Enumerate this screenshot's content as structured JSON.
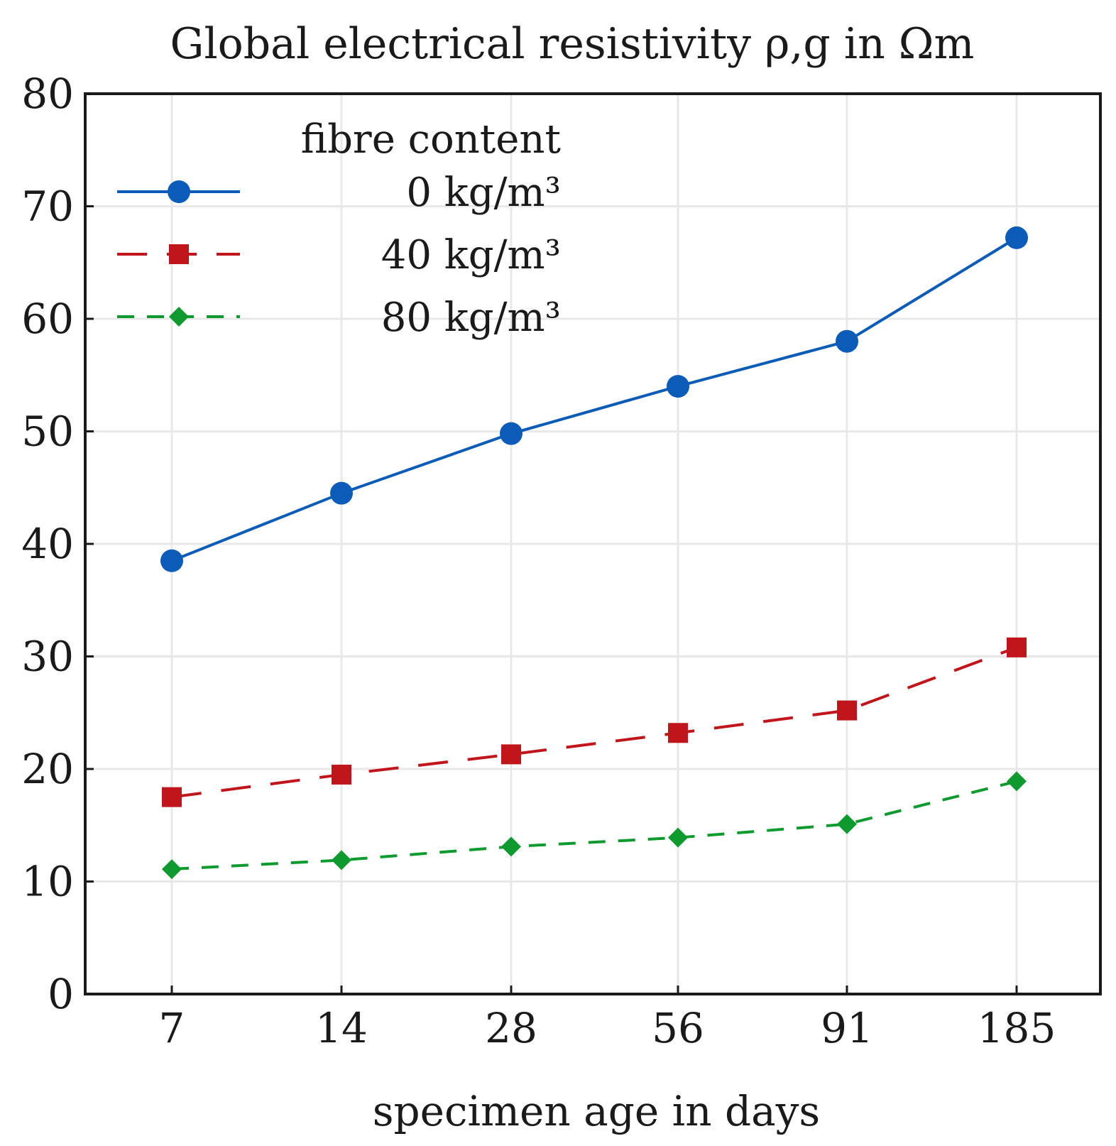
{
  "chart_data": {
    "type": "line",
    "title": "Global electrical resistivity ρ,g in Ωm",
    "xlabel": "specimen age in days",
    "ylabel": "",
    "categories": [
      "7",
      "14",
      "28",
      "56",
      "91",
      "185"
    ],
    "ylim": [
      0,
      80
    ],
    "yticks": [
      0,
      10,
      20,
      30,
      40,
      50,
      60,
      70,
      80
    ],
    "grid": true,
    "legend": {
      "title": "fibre content",
      "position": "top-left"
    },
    "series": [
      {
        "name": "0 kg/m³",
        "values": [
          38.5,
          44.5,
          49.8,
          54.0,
          58.0,
          67.2
        ],
        "color": "#0a5cb8",
        "marker": "circle",
        "line": "solid"
      },
      {
        "name": "40 kg/m³",
        "values": [
          17.5,
          19.5,
          21.3,
          23.2,
          25.2,
          30.8
        ],
        "color": "#c0151b",
        "marker": "square",
        "line": "dashed"
      },
      {
        "name": "80 kg/m³",
        "values": [
          11.1,
          11.9,
          13.1,
          13.9,
          15.1,
          18.9
        ],
        "color": "#0f9a2f",
        "marker": "diamond",
        "line": "dotted"
      }
    ]
  }
}
